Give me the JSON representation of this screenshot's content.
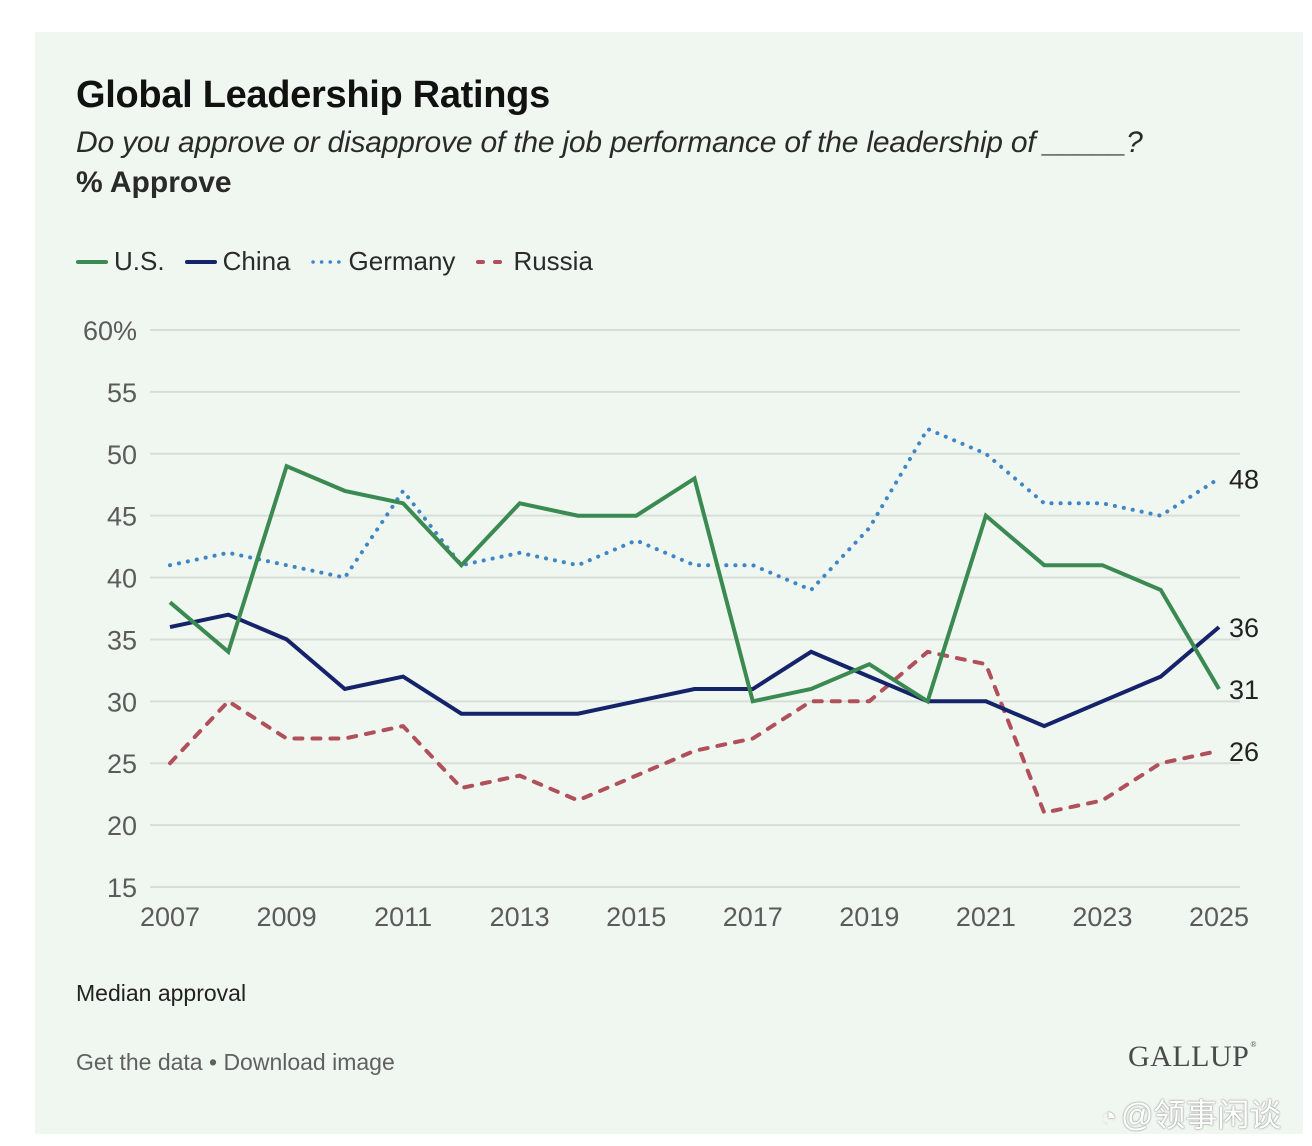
{
  "header": {
    "title": "Global Leadership Ratings",
    "subtitle": "Do you approve or disapprove of the job performance of the leadership of _____?",
    "unit_label": "% Approve"
  },
  "legend": [
    {
      "name": "U.S.",
      "color": "#3a8a52",
      "style": "solid"
    },
    {
      "name": "China",
      "color": "#15236b",
      "style": "solid"
    },
    {
      "name": "Germany",
      "color": "#3f86c6",
      "style": "dotted"
    },
    {
      "name": "Russia",
      "color": "#b0505a",
      "style": "dashed"
    }
  ],
  "chart_data": {
    "type": "line",
    "title": "Global Leadership Ratings",
    "subtitle": "Do you approve or disapprove of the job performance of the leadership of _____?",
    "ylabel": "% Approve",
    "xlabel": "",
    "x": [
      2007,
      2008,
      2009,
      2010,
      2011,
      2012,
      2013,
      2014,
      2015,
      2016,
      2017,
      2018,
      2019,
      2020,
      2021,
      2022,
      2023,
      2024,
      2025
    ],
    "ylim": [
      15,
      60
    ],
    "yticks": [
      15,
      20,
      25,
      30,
      35,
      40,
      45,
      50,
      55,
      60
    ],
    "ytick_labels": [
      "15",
      "20",
      "25",
      "30",
      "35",
      "40",
      "45",
      "50",
      "55",
      "60%"
    ],
    "xticks": [
      2007,
      2009,
      2011,
      2013,
      2015,
      2017,
      2019,
      2021,
      2023,
      2025
    ],
    "xtick_labels": [
      "2007",
      "2009",
      "2011",
      "2013",
      "2015",
      "2017",
      "2019",
      "2021",
      "2023",
      "2025"
    ],
    "grid": true,
    "legend_position": "top-left",
    "series": [
      {
        "name": "U.S.",
        "color": "#3a8a52",
        "style": "solid",
        "values": [
          38,
          34,
          49,
          47,
          46,
          41,
          46,
          45,
          45,
          48,
          30,
          31,
          33,
          30,
          45,
          41,
          41,
          39,
          31
        ]
      },
      {
        "name": "China",
        "color": "#15236b",
        "style": "solid",
        "values": [
          36,
          37,
          35,
          31,
          32,
          29,
          29,
          29,
          30,
          31,
          31,
          34,
          32,
          30,
          30,
          28,
          30,
          32,
          36
        ]
      },
      {
        "name": "Germany",
        "color": "#3f86c6",
        "style": "dotted",
        "values": [
          41,
          42,
          41,
          40,
          47,
          41,
          42,
          41,
          43,
          41,
          41,
          39,
          44,
          52,
          50,
          46,
          46,
          45,
          48
        ]
      },
      {
        "name": "Russia",
        "color": "#b0505a",
        "style": "dashed",
        "values": [
          25,
          30,
          27,
          27,
          28,
          23,
          24,
          22,
          24,
          26,
          27,
          30,
          30,
          34,
          33,
          21,
          22,
          25,
          26
        ]
      }
    ],
    "end_labels": [
      {
        "series": "Germany",
        "text": "48"
      },
      {
        "series": "China",
        "text": "36"
      },
      {
        "series": "U.S.",
        "text": "31"
      },
      {
        "series": "Russia",
        "text": "26"
      }
    ]
  },
  "note": "Median approval",
  "footer": {
    "get_data": "Get the data",
    "separator": "•",
    "download": "Download image"
  },
  "brand": "GALLUP",
  "watermark": "@领事闲谈"
}
